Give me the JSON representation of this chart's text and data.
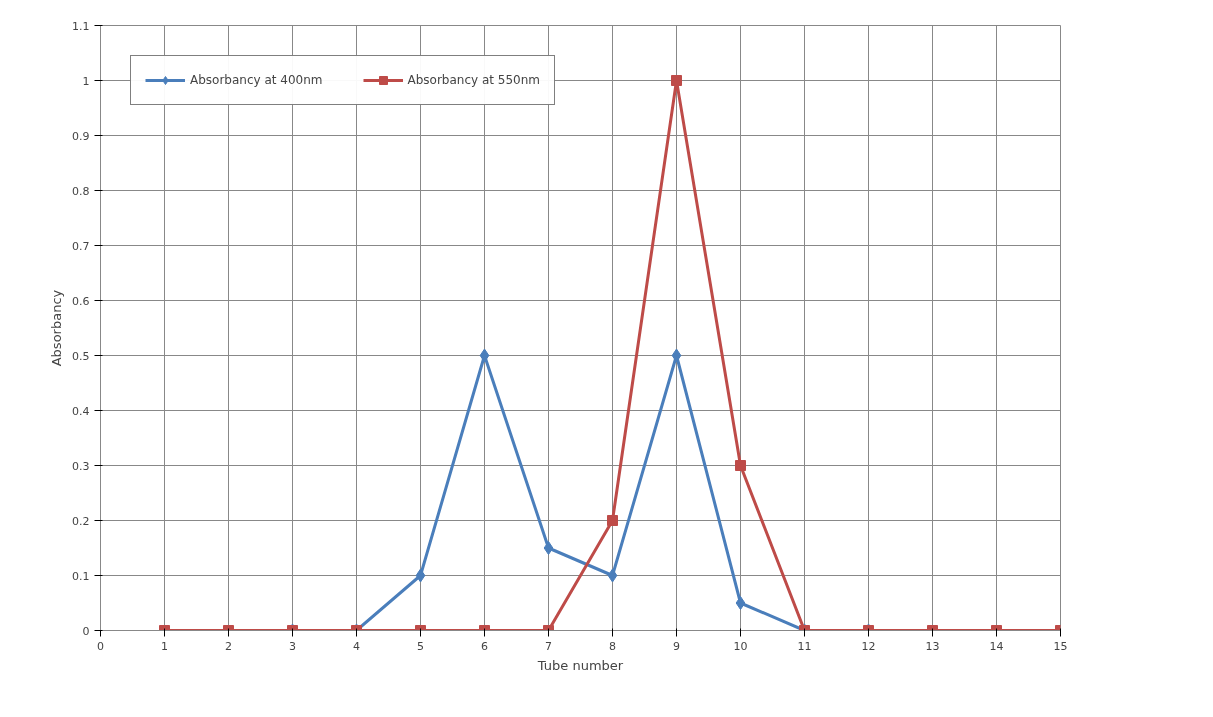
{
  "chart_data": {
    "type": "line",
    "xlabel": "Tube number",
    "ylabel": "Absorbancy",
    "x": [
      1,
      2,
      3,
      4,
      5,
      6,
      7,
      8,
      9,
      10,
      11,
      12,
      13,
      14,
      15
    ],
    "series": [
      {
        "name": "Absorbancy at 400nm",
        "color": "#4a7ebb",
        "marker": "diamond",
        "values": [
          null,
          null,
          0,
          0,
          0.1,
          0.5,
          0.15,
          0.1,
          0.5,
          0.05,
          0,
          0,
          null,
          null,
          null
        ]
      },
      {
        "name": "Absorbancy at 550nm",
        "color": "#be4b48",
        "marker": "square",
        "values": [
          0,
          0,
          0,
          0,
          0,
          0,
          0,
          0.2,
          1,
          0.3,
          0,
          0,
          0,
          0,
          0
        ]
      }
    ],
    "xlim": [
      0,
      15
    ],
    "xticks": [
      0,
      1,
      2,
      3,
      4,
      5,
      6,
      7,
      8,
      9,
      10,
      11,
      12,
      13,
      14,
      15
    ],
    "ylim": [
      0,
      1.1
    ],
    "yticks": [
      0,
      0.1,
      0.2,
      0.3,
      0.4,
      0.5,
      0.6,
      0.7,
      0.8,
      0.9,
      1,
      1.1
    ],
    "grid": true,
    "legend": "top left",
    "line_style": "solid"
  }
}
